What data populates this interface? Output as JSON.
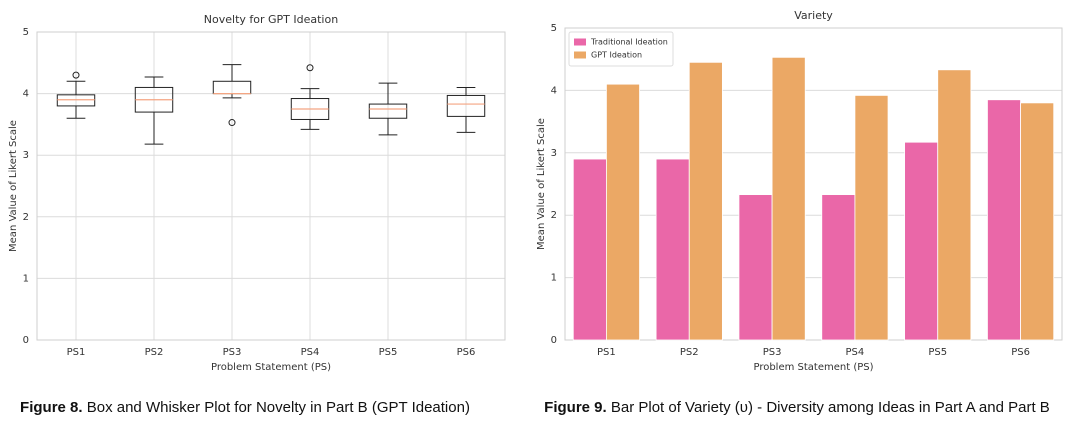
{
  "chart_data": [
    {
      "type": "box",
      "title": "Novelty for GPT Ideation",
      "x_label": "Problem Statement (PS)",
      "y_label": "Mean Value of Likert Scale",
      "categories": [
        "PS1",
        "PS2",
        "PS3",
        "PS4",
        "PS5",
        "PS6"
      ],
      "boxes": [
        {
          "whislo": 3.6,
          "q1": 3.8,
          "med": 3.9,
          "q3": 3.98,
          "whishi": 4.2,
          "fliers": [
            4.3
          ]
        },
        {
          "whislo": 3.18,
          "q1": 3.7,
          "med": 3.9,
          "q3": 4.1,
          "whishi": 4.27,
          "fliers": []
        },
        {
          "whislo": 3.93,
          "q1": 4.0,
          "med": 4.0,
          "q3": 4.2,
          "whishi": 4.47,
          "fliers": [
            3.53
          ]
        },
        {
          "whislo": 3.42,
          "q1": 3.58,
          "med": 3.75,
          "q3": 3.92,
          "whishi": 4.08,
          "fliers": [
            4.42
          ]
        },
        {
          "whislo": 3.33,
          "q1": 3.6,
          "med": 3.75,
          "q3": 3.83,
          "whishi": 4.17,
          "fliers": []
        },
        {
          "whislo": 3.37,
          "q1": 3.63,
          "med": 3.83,
          "q3": 3.97,
          "whishi": 4.1,
          "fliers": []
        }
      ],
      "color": "#222222",
      "median_color": "#f4a582",
      "ylim": [
        0,
        5
      ],
      "yticks": [
        0,
        1,
        2,
        3,
        4,
        5
      ],
      "grid": true
    },
    {
      "type": "bar",
      "title": "Variety",
      "x_label": "Problem Statement (PS)",
      "y_label": "Mean Value of Likert Scale",
      "categories": [
        "PS1",
        "PS2",
        "PS3",
        "PS4",
        "PS5",
        "PS6"
      ],
      "series": [
        {
          "name": "Traditional Ideation",
          "color": "#ea67a8",
          "values": [
            2.9,
            2.9,
            2.33,
            2.33,
            3.17,
            3.85
          ]
        },
        {
          "name": "GPT Ideation",
          "color": "#eba865",
          "values": [
            4.1,
            4.45,
            4.53,
            3.92,
            4.33,
            3.8
          ]
        }
      ],
      "ylim": [
        0,
        5
      ],
      "yticks": [
        0,
        1,
        2,
        3,
        4,
        5
      ],
      "grid": true,
      "legend": "upper left"
    }
  ],
  "captions": [
    {
      "label": "Figure 8.",
      "text": "Box and Whisker Plot for Novelty in Part B (GPT Ideation)"
    },
    {
      "label": "Figure 9.",
      "text": "Bar Plot of Variety (υ) - Diversity among Ideas in Part A and Part B"
    }
  ]
}
